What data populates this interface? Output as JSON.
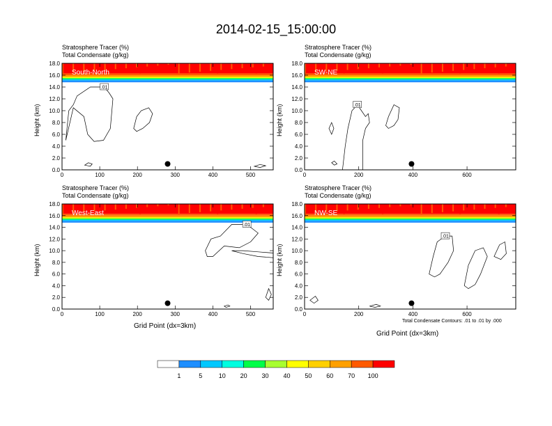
{
  "figure": {
    "title": "2014-02-15_15:00:00"
  },
  "panel_header": {
    "line1": "Stratosphere Tracer   (%)",
    "line2": "Total Condensate   (g/kg)"
  },
  "y_axis_label": "Height (km)",
  "x_axis_label": "Grid Point (dx=3km)",
  "footnote": "Total Condensate Contours: .01 to .01 by .000",
  "chart_data": [
    {
      "type": "heatmap",
      "panel": "South-North",
      "xlim": [
        0,
        560
      ],
      "ylim": [
        0,
        18
      ],
      "xticks": [
        0,
        100,
        200,
        300,
        400,
        500
      ],
      "yticks": [
        "0.0",
        "2.0",
        "4.0",
        "6.0",
        "8.0",
        "10.0",
        "12.0",
        "14.0",
        "16.0",
        "18.0"
      ],
      "contour_labels": [
        ".01"
      ],
      "marker_x": 280
    },
    {
      "type": "heatmap",
      "panel": "SW-NE",
      "xlim": [
        0,
        780
      ],
      "ylim": [
        0,
        18
      ],
      "xticks": [
        0,
        200,
        400,
        600
      ],
      "yticks": [
        "0.0",
        "2.0",
        "4.0",
        "6.0",
        "8.0",
        "10.0",
        "12.0",
        "14.0",
        "16.0",
        "18.0"
      ],
      "contour_labels": [
        ".01"
      ],
      "marker_x": 395
    },
    {
      "type": "heatmap",
      "panel": "West-East",
      "xlim": [
        0,
        560
      ],
      "ylim": [
        0,
        18
      ],
      "xticks": [
        0,
        100,
        200,
        300,
        400,
        500
      ],
      "yticks": [
        "0.0",
        "2.0",
        "4.0",
        "6.0",
        "8.0",
        "10.0",
        "12.0",
        "14.0",
        "16.0",
        "18.0"
      ],
      "contour_labels": [
        ".01"
      ],
      "marker_x": 280
    },
    {
      "type": "heatmap",
      "panel": "NW-SE",
      "xlim": [
        0,
        780
      ],
      "ylim": [
        0,
        18
      ],
      "xticks": [
        0,
        200,
        400,
        600
      ],
      "yticks": [
        "0.0",
        "2.0",
        "4.0",
        "6.0",
        "8.0",
        "10.0",
        "12.0",
        "14.0",
        "16.0",
        "18.0"
      ],
      "contour_labels": [
        ".01"
      ],
      "marker_x": 395
    }
  ],
  "colorbar": {
    "colors": [
      "#ffffff",
      "#1f8fff",
      "#00c8ff",
      "#00ffe0",
      "#00ff48",
      "#a8ff30",
      "#ffff00",
      "#ffd000",
      "#ffa000",
      "#ff5a00",
      "#ff0000"
    ],
    "labels": [
      "1",
      "5",
      "10",
      "20",
      "30",
      "40",
      "50",
      "60",
      "70",
      "100"
    ]
  }
}
